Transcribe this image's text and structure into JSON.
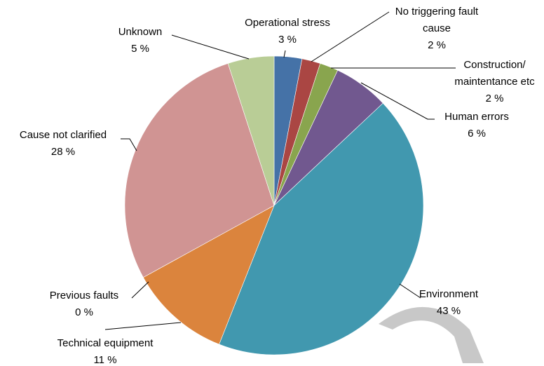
{
  "chart_data": {
    "type": "pie",
    "categories": [
      "Operational stress",
      "No triggering fault cause",
      "Construction/ maintentance etc",
      "Human errors",
      "Environment",
      "Technical equipment",
      "Previous faults",
      "Cause not clarified",
      "Unknown"
    ],
    "values": [
      3,
      2,
      2,
      6,
      43,
      11,
      0,
      28,
      5
    ],
    "value_labels": [
      "3 %",
      "2 %",
      "2 %",
      "6 %",
      "43 %",
      "11 %",
      "0 %",
      "28 %",
      "5 %"
    ],
    "colors": [
      "#4572a7",
      "#aa4643",
      "#89a54e",
      "#71588f",
      "#4198af",
      "#db843d",
      "#93a9cf",
      "#d09493",
      "#b9cd96"
    ]
  }
}
